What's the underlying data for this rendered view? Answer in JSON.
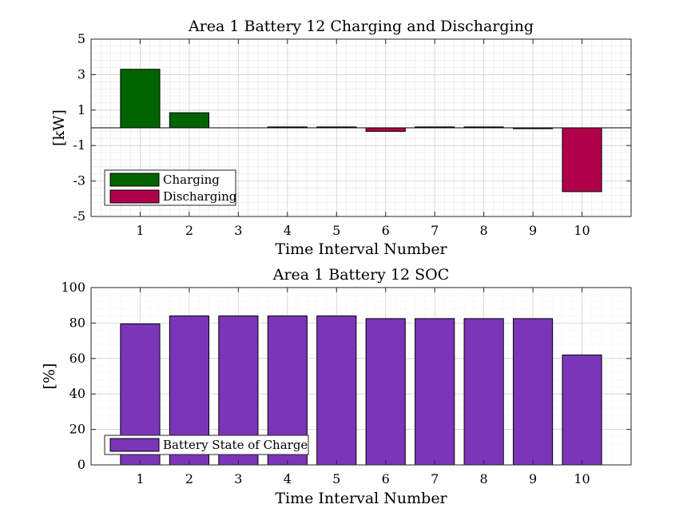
{
  "chart_data": [
    {
      "type": "bar",
      "title": "Area 1 Battery 12 Charging and Discharging",
      "xlabel": "Time Interval Number",
      "ylabel": "[kW]",
      "categories": [
        "1",
        "2",
        "3",
        "4",
        "5",
        "6",
        "7",
        "8",
        "9",
        "10"
      ],
      "xlim": [
        0,
        11
      ],
      "ylim": [
        -5,
        5
      ],
      "yticks": [
        "5",
        "3",
        "1",
        "-1",
        "-3",
        "-5"
      ],
      "grid": true,
      "legend_position": "bottom-left",
      "series": [
        {
          "name": "Charging",
          "color": "#006400",
          "values": [
            3.3,
            0.85,
            0,
            0.05,
            0.05,
            0,
            0.05,
            0.05,
            0,
            0
          ]
        },
        {
          "name": "Discharging",
          "color": "#b0004a",
          "values": [
            0,
            0,
            0,
            0,
            0,
            -0.2,
            0,
            0,
            -0.05,
            -3.6
          ]
        }
      ]
    },
    {
      "type": "bar",
      "title": "Area 1 Battery 12 SOC",
      "xlabel": "Time Interval Number",
      "ylabel": "[%]",
      "categories": [
        "1",
        "2",
        "3",
        "4",
        "5",
        "6",
        "7",
        "8",
        "9",
        "10"
      ],
      "xlim": [
        0,
        11
      ],
      "ylim": [
        0,
        100
      ],
      "yticks": [
        "100",
        "80",
        "60",
        "40",
        "20",
        "0"
      ],
      "grid": true,
      "legend_position": "bottom-left",
      "series": [
        {
          "name": "Battery State of Charge",
          "color": "#7b35b8",
          "values": [
            79.5,
            84,
            84,
            84,
            84,
            82.5,
            82.5,
            82.5,
            82.5,
            62
          ]
        }
      ]
    }
  ]
}
